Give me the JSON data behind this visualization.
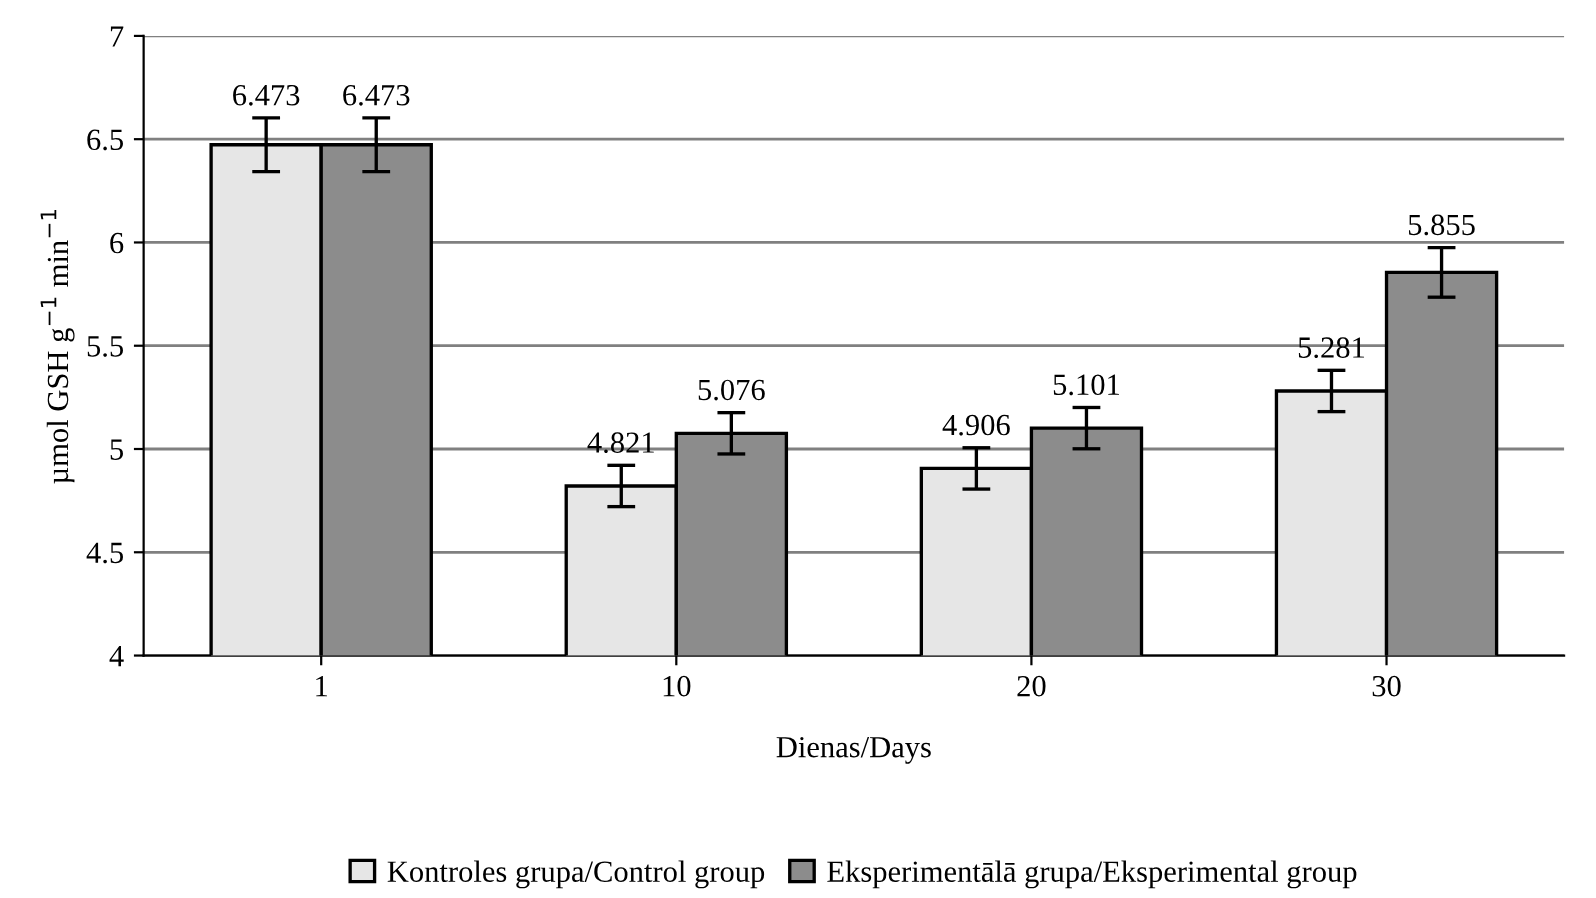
{
  "chart_data": {
    "type": "bar",
    "xlabel": "Dienas/Days",
    "ylabel": "µmol GSH g$^{−1}$ min$^{−1}$",
    "categories": [
      "1",
      "10",
      "20",
      "30"
    ],
    "series": [
      {
        "name": "Kontroles grupa/Control group",
        "color": "#e6e6e6",
        "values": [
          6.473,
          4.821,
          4.906,
          5.281
        ],
        "errors": [
          0.13,
          0.1,
          0.1,
          0.1
        ]
      },
      {
        "name": "Eksperimentālā grupa/Eksperimental group",
        "color": "#8c8c8c",
        "values": [
          6.473,
          5.076,
          5.101,
          5.855
        ],
        "errors": [
          0.13,
          0.1,
          0.1,
          0.12
        ]
      }
    ],
    "ylim": [
      4,
      7
    ],
    "yticks": [
      4,
      4.5,
      5,
      5.5,
      6,
      6.5,
      7
    ],
    "grid": "y",
    "legend": "bottom",
    "data_labels": true
  }
}
